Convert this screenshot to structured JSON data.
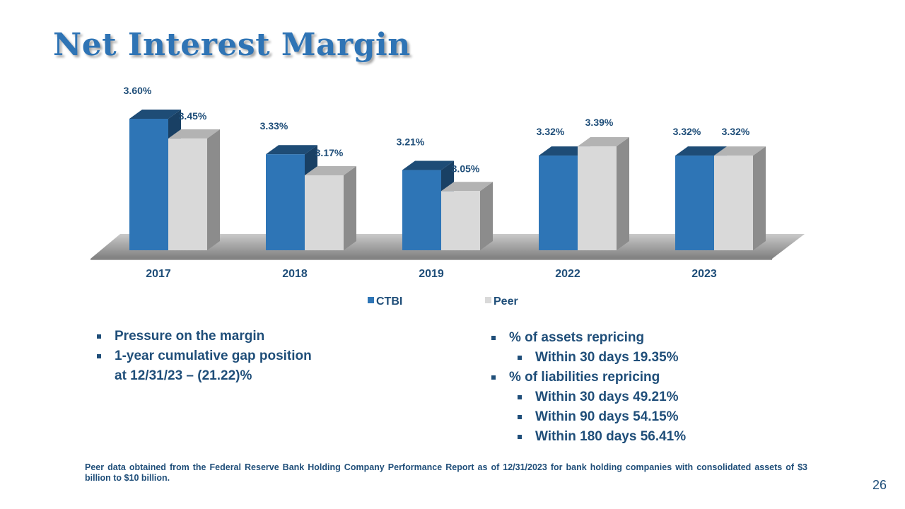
{
  "slide": {
    "title": "Net Interest Margin",
    "page_number": "26"
  },
  "chart_data": {
    "type": "bar",
    "categories": [
      "2017",
      "2018",
      "2019",
      "2022",
      "2023"
    ],
    "series": [
      {
        "name": "CTBI",
        "values": [
          3.6,
          3.33,
          3.21,
          3.32,
          3.32
        ],
        "labels": [
          "3.60%",
          "3.33%",
          "3.21%",
          "3.32%",
          "3.32%"
        ],
        "color": "#2e75b6"
      },
      {
        "name": "Peer",
        "values": [
          3.45,
          3.17,
          3.05,
          3.39,
          3.32
        ],
        "labels": [
          "3.45%",
          "3.17%",
          "3.05%",
          "3.39%",
          "3.32%"
        ],
        "color": "#d9d9d9"
      }
    ],
    "ylim": [
      2.6,
      3.7
    ],
    "legend_position": "bottom",
    "grid": false,
    "style": "3d-clustered-column"
  },
  "bullets_left": [
    {
      "level": 1,
      "lines": [
        "Pressure on the margin"
      ]
    },
    {
      "level": 1,
      "lines": [
        "1-year cumulative gap position",
        "at 12/31/23 – (21.22)%"
      ]
    }
  ],
  "bullets_right": [
    {
      "level": 1,
      "text": "% of assets repricing"
    },
    {
      "level": 2,
      "text": "Within 30 days 19.35%"
    },
    {
      "level": 1,
      "text": "% of liabilities  repricing"
    },
    {
      "level": 2,
      "text": "Within 30 days 49.21%"
    },
    {
      "level": 2,
      "text": "Within 90 days 54.15%"
    },
    {
      "level": 2,
      "text": "Within 180 days 56.41%"
    }
  ],
  "footnote": "Peer data obtained from the Federal Reserve Bank Holding Company Performance Report as of 12/31/2023 for bank holding companies with consolidated assets of $3 billion to $10 billion."
}
